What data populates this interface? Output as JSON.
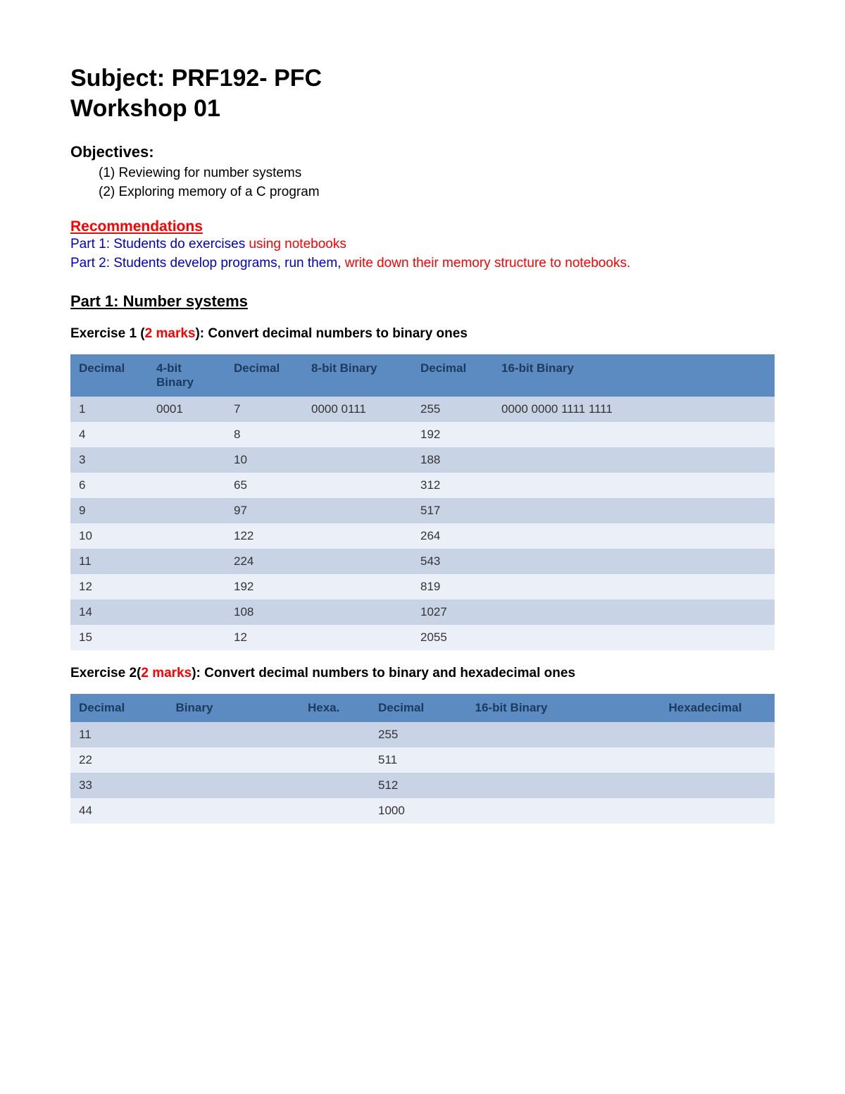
{
  "colors": {
    "text_black": "#000000",
    "red": "#ff0000",
    "blue": "#0000cc",
    "table_header_bg": "#5b8bc0",
    "table_header_text": "#1d3a5e",
    "row_odd_bg": "#c8d3e6",
    "row_even_bg": "#ebeff7",
    "cell_text": "#333333"
  },
  "title": {
    "line1": "Subject: PRF192- PFC",
    "line2": "Workshop 01"
  },
  "objectives": {
    "heading": "Objectives:",
    "items": [
      "(1) Reviewing for number systems",
      "(2) Exploring memory of a C program"
    ]
  },
  "recommendations": {
    "heading": "Recommendations",
    "line1": {
      "blue": "Part 1: Students do exercises ",
      "red": "using notebooks"
    },
    "line2": {
      "blue": "Part 2: Students develop programs, run them, ",
      "red": "write down their memory structure to notebooks."
    }
  },
  "part1": {
    "heading": "Part 1: Number systems"
  },
  "exercise1": {
    "label_prefix": "Exercise 1 (",
    "marks": "2 marks",
    "label_suffix": "): Convert decimal numbers to binary ones",
    "table": {
      "col_widths_pct": [
        11,
        11,
        11,
        15.5,
        11.5,
        40
      ],
      "headers": [
        "Decimal",
        "4-bit Binary",
        "Decimal",
        "8-bit Binary",
        "Decimal",
        "16-bit Binary"
      ],
      "rows": [
        [
          "1",
          "0001",
          "7",
          "0000 0111",
          "255",
          "0000 0000 1111 1111"
        ],
        [
          "4",
          "",
          "8",
          "",
          "192",
          ""
        ],
        [
          "3",
          "",
          "10",
          "",
          "188",
          ""
        ],
        [
          "6",
          "",
          "65",
          "",
          "312",
          ""
        ],
        [
          "9",
          "",
          "97",
          "",
          "517",
          ""
        ],
        [
          "10",
          "",
          "122",
          "",
          "264",
          ""
        ],
        [
          "11",
          "",
          "224",
          "",
          "543",
          ""
        ],
        [
          "12",
          "",
          "192",
          "",
          "819",
          ""
        ],
        [
          "14",
          "",
          "108",
          "",
          "1027",
          ""
        ],
        [
          "15",
          "",
          "12",
          "",
          "2055",
          ""
        ]
      ]
    }
  },
  "exercise2": {
    "label_prefix": "Exercise 2(",
    "marks": "2 marks",
    "label_suffix": "): Convert decimal numbers to binary and hexadecimal ones",
    "table": {
      "col_widths_pct": [
        11,
        15,
        8,
        11,
        22,
        13
      ],
      "headers": [
        "Decimal",
        "Binary",
        "Hexa.",
        "Decimal",
        "16-bit Binary",
        "Hexadecimal"
      ],
      "rows": [
        [
          "11",
          "",
          "",
          "255",
          "",
          ""
        ],
        [
          "22",
          "",
          "",
          "511",
          "",
          ""
        ],
        [
          "33",
          "",
          "",
          "512",
          "",
          ""
        ],
        [
          "44",
          "",
          "",
          "1000",
          "",
          ""
        ]
      ]
    }
  }
}
